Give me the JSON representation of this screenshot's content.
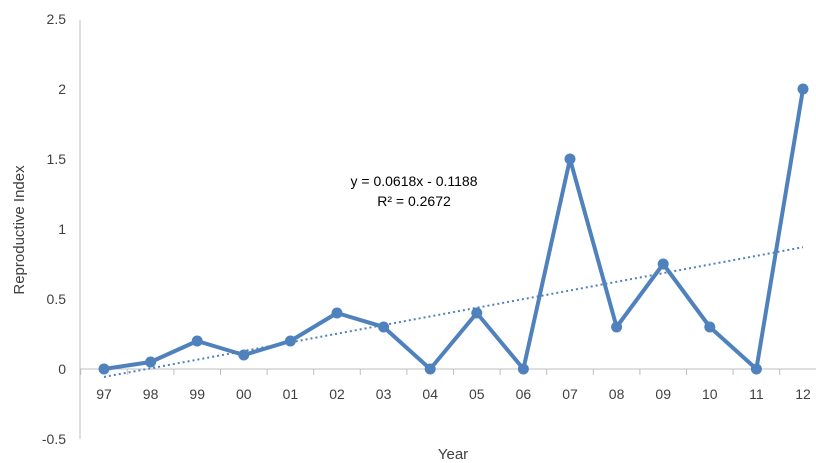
{
  "chart_data": {
    "type": "line",
    "categories": [
      "97",
      "98",
      "99",
      "00",
      "01",
      "02",
      "03",
      "04",
      "05",
      "06",
      "07",
      "08",
      "09",
      "10",
      "11",
      "12"
    ],
    "series": [
      {
        "values": [
          0,
          0.05,
          0.2,
          0.1,
          0.2,
          0.4,
          0.3,
          0,
          0.4,
          0,
          1.5,
          0.3,
          0.75,
          0.3,
          0,
          2
        ],
        "color": "#4f81bd"
      }
    ],
    "trendline": {
      "type": "linear",
      "slope": 0.0618,
      "intercept": -0.1188,
      "style": "dotted",
      "color": "#4f81bd"
    },
    "annotation": {
      "equation": "y = 0.0618x - 0.1188",
      "r_squared": "R² = 0.2672"
    },
    "xlabel": "Year",
    "ylabel": "Reproductive Index",
    "ylim": [
      -0.5,
      2.5
    ],
    "yticks": [
      "-0.5",
      "0",
      "0.5",
      "1",
      "1.5",
      "2",
      "2.5"
    ],
    "grid": false,
    "legend": "none"
  }
}
